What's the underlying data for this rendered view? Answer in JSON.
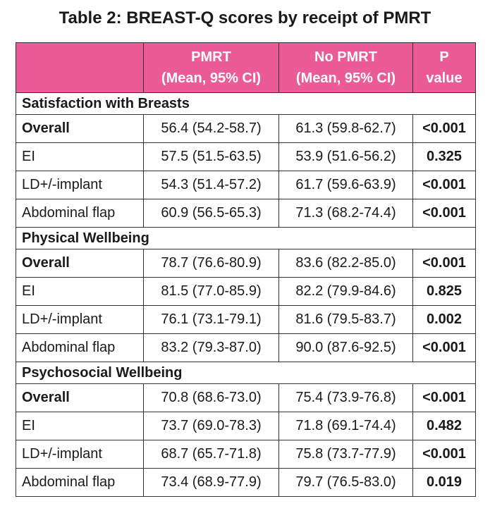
{
  "header": {
    "title": "Table 2: BREAST-Q scores by receipt of PMRT"
  },
  "table": {
    "columns": [
      [
        "PMRT",
        "(Mean, 95% CI)"
      ],
      [
        "No PMRT",
        "(Mean, 95% CI)"
      ],
      [
        "P",
        "value"
      ]
    ],
    "sections": [
      {
        "title": "Satisfaction with Breasts",
        "rows": [
          [
            "Overall",
            "56.4 (54.2-58.7)",
            "61.3 (59.8-62.7)",
            "<0.001"
          ],
          [
            "EI",
            "57.5 (51.5-63.5)",
            "53.9 (51.6-56.2)",
            "0.325"
          ],
          [
            "LD+/-implant",
            "54.3 (51.4-57.2)",
            "61.7 (59.6-63.9)",
            "<0.001"
          ],
          [
            "Abdominal flap",
            "60.9 (56.5-65.3)",
            "71.3 (68.2-74.4)",
            "<0.001"
          ]
        ]
      },
      {
        "title": "Physical Wellbeing",
        "rows": [
          [
            "Overall",
            "78.7 (76.6-80.9)",
            "83.6 (82.2-85.0)",
            "<0.001"
          ],
          [
            "EI",
            "81.5 (77.0-85.9)",
            "82.2 (79.9-84.6)",
            "0.825"
          ],
          [
            "LD+/-implant",
            "76.1 (73.1-79.1)",
            "81.6 (79.5-83.7)",
            "0.002"
          ],
          [
            "Abdominal flap",
            "83.2 (79.3-87.0)",
            "90.0 (87.6-92.5)",
            "<0.001"
          ]
        ]
      },
      {
        "title": "Psychosocial Wellbeing",
        "rows": [
          [
            "Overall",
            "70.8 (68.6-73.0)",
            "75.4 (73.9-76.8)",
            "<0.001"
          ],
          [
            "EI",
            "73.7 (69.0-78.3)",
            "71.8 (69.1-74.4)",
            "0.482"
          ],
          [
            "LD+/-implant",
            "68.7 (65.7-71.8)",
            "75.8 (73.7-77.9)",
            "<0.001"
          ],
          [
            "Abdominal flap",
            "73.4 (68.9-77.9)",
            "79.7 (76.5-83.0)",
            "0.019"
          ]
        ]
      }
    ]
  }
}
